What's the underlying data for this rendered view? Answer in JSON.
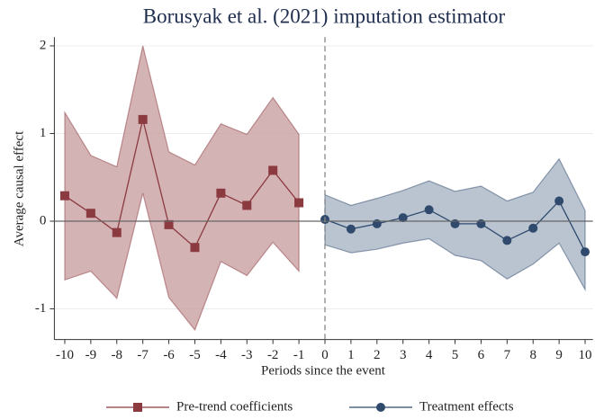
{
  "chart_data": {
    "type": "line",
    "title": "Borusyak et al. (2021) imputation estimator",
    "x_label": "Periods since the event",
    "y_label": "Average causal effect",
    "xlim": [
      -10.4,
      10.3
    ],
    "ylim": [
      -1.35,
      2.1
    ],
    "xticks": [
      -10,
      -9,
      -8,
      -7,
      -6,
      -5,
      -4,
      -3,
      -2,
      -1,
      0,
      1,
      2,
      3,
      4,
      5,
      6,
      7,
      8,
      9,
      10
    ],
    "yticks": [
      -1,
      0,
      1,
      2
    ],
    "hline": 0,
    "vline": 0,
    "grid": true,
    "legend": "bottom",
    "series": [
      {
        "name": "Pre-trend coefficients",
        "color": "#8b3a40",
        "band_color": "#c9a0a3",
        "marker": "square",
        "x": [
          -10,
          -9,
          -8,
          -7,
          -6,
          -5,
          -4,
          -3,
          -2,
          -1
        ],
        "values": [
          0.29,
          0.09,
          -0.13,
          1.16,
          -0.04,
          -0.3,
          0.32,
          0.18,
          0.58,
          0.21
        ],
        "upper": [
          1.24,
          0.75,
          0.62,
          2.0,
          0.79,
          0.64,
          1.11,
          0.99,
          1.41,
          0.99
        ],
        "lower": [
          -0.67,
          -0.57,
          -0.88,
          0.32,
          -0.87,
          -1.24,
          -0.46,
          -0.62,
          -0.24,
          -0.57
        ]
      },
      {
        "name": "Treatment effects",
        "color": "#2f4a6d",
        "band_color": "#a9b5c6",
        "marker": "circle",
        "x": [
          0,
          1,
          2,
          3,
          4,
          5,
          6,
          7,
          8,
          9,
          10
        ],
        "values": [
          0.02,
          -0.09,
          -0.03,
          0.04,
          0.13,
          -0.03,
          -0.03,
          -0.22,
          -0.08,
          0.23,
          -0.35
        ],
        "upper": [
          0.3,
          0.18,
          0.26,
          0.35,
          0.46,
          0.34,
          0.4,
          0.23,
          0.33,
          0.71,
          0.12
        ],
        "lower": [
          -0.27,
          -0.36,
          -0.32,
          -0.25,
          -0.2,
          -0.39,
          -0.45,
          -0.66,
          -0.49,
          -0.25,
          -0.78
        ]
      }
    ]
  }
}
